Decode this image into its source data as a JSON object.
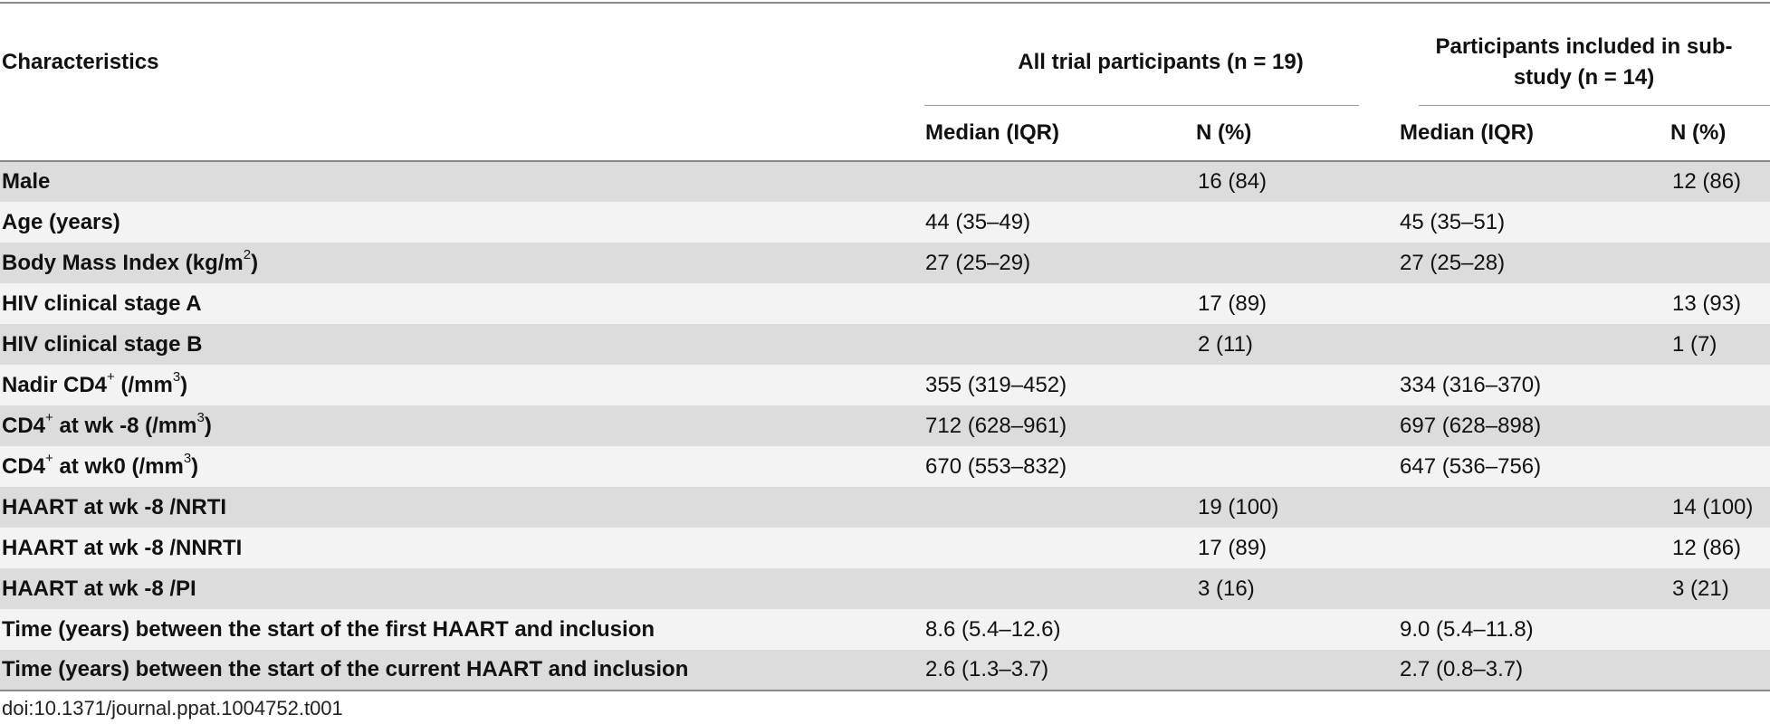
{
  "table": {
    "header": {
      "characteristics": "Characteristics",
      "group1": "All trial participants (n = 19)",
      "group2": "Participants included in sub-study (n = 14)",
      "median_iqr": "Median (IQR)",
      "n_pct": "N (%)"
    },
    "rows": [
      {
        "label": "Male",
        "median1": "",
        "n1": "16 (84)",
        "median2": "",
        "n2": "12 (86)"
      },
      {
        "label": "Age (years)",
        "median1": "44 (35–49)",
        "n1": "",
        "median2": "45 (35–51)",
        "n2": ""
      },
      {
        "label_pre": "Body Mass Index (kg/m",
        "label_sup": "2",
        "label_post": ")",
        "median1": "27 (25–29)",
        "n1": "",
        "median2": "27 (25–28)",
        "n2": ""
      },
      {
        "label": "HIV clinical stage A",
        "median1": "",
        "n1": "17 (89)",
        "median2": "",
        "n2": "13 (93)"
      },
      {
        "label": "HIV clinical stage B",
        "median1": "",
        "n1": "2 (11)",
        "median2": "",
        "n2": "1 (7)"
      },
      {
        "label_pre": "Nadir CD4",
        "label_sup": "+",
        "label_mid": " (/mm",
        "label_sup2": "3",
        "label_post": ")",
        "median1": "355 (319–452)",
        "n1": "",
        "median2": "334 (316–370)",
        "n2": ""
      },
      {
        "label_pre": "CD4",
        "label_sup": "+",
        "label_mid": " at wk -8 (/mm",
        "label_sup2": "3",
        "label_post": ")",
        "median1": "712 (628–961)",
        "n1": "",
        "median2": "697 (628–898)",
        "n2": ""
      },
      {
        "label_pre": "CD4",
        "label_sup": "+",
        "label_mid": " at wk0 (/mm",
        "label_sup2": "3",
        "label_post": ")",
        "median1": "670 (553–832)",
        "n1": "",
        "median2": "647 (536–756)",
        "n2": ""
      },
      {
        "label": "HAART at wk -8 /NRTI",
        "median1": "",
        "n1": "19 (100)",
        "median2": "",
        "n2": "14 (100)"
      },
      {
        "label": "HAART at wk -8 /NNRTI",
        "median1": "",
        "n1": "17 (89)",
        "median2": "",
        "n2": "12 (86)"
      },
      {
        "label": "HAART at wk -8 /PI",
        "median1": "",
        "n1": "3 (16)",
        "median2": "",
        "n2": "3 (21)"
      },
      {
        "label": "Time (years) between the start of the first HAART and inclusion",
        "median1": "8.6 (5.4–12.6)",
        "n1": "",
        "median2": "9.0 (5.4–11.8)",
        "n2": ""
      },
      {
        "label": "Time (years) between the start of the current HAART and inclusion",
        "median1": "2.6 (1.3–3.7)",
        "n1": "",
        "median2": "2.7 (0.8–3.7)",
        "n2": ""
      }
    ]
  },
  "footer": {
    "doi": "doi:10.1371/journal.ppat.1004752.t001"
  }
}
